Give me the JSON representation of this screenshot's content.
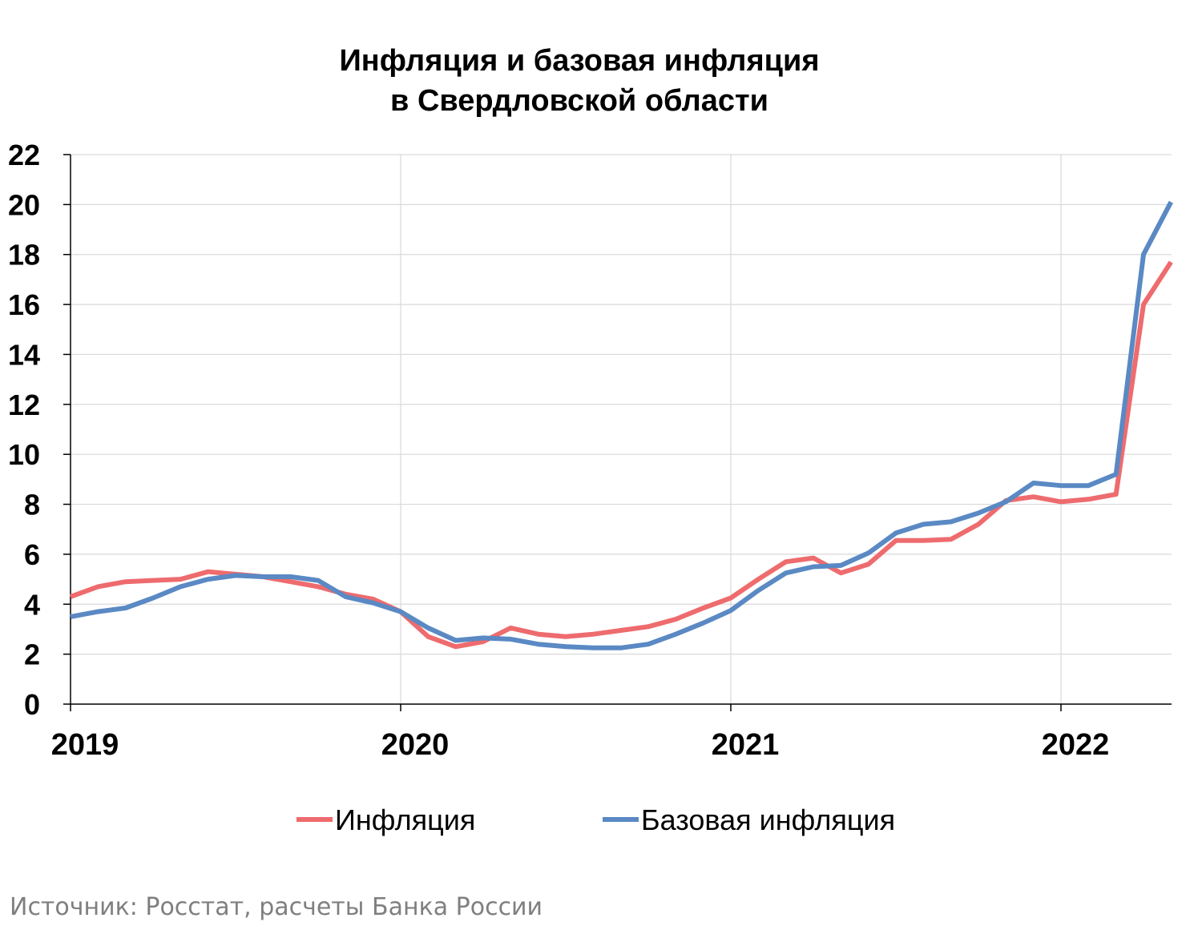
{
  "chart_data": {
    "type": "line",
    "title": [
      "Инфляция и базовая инфляция",
      "в  Свердловской области"
    ],
    "source": "Источник: Росстат, расчеты Банка России",
    "x_tick_labels": [
      "2019",
      "2020",
      "2021",
      "2022"
    ],
    "x_unit": "months since January 2019",
    "ylim": [
      0,
      22
    ],
    "y_ticks": [
      0,
      2,
      4,
      6,
      8,
      10,
      12,
      14,
      16,
      18,
      20,
      22
    ],
    "grid": true,
    "legend_position": "bottom",
    "series": [
      {
        "name": "Инфляция",
        "color": "#EE6B6E",
        "values": [
          4.3,
          4.7,
          4.9,
          4.95,
          5.0,
          5.3,
          5.2,
          5.1,
          4.9,
          4.7,
          4.4,
          4.2,
          3.7,
          2.7,
          2.3,
          2.5,
          3.05,
          2.8,
          2.7,
          2.8,
          2.95,
          3.1,
          3.4,
          3.85,
          4.25,
          5.0,
          5.7,
          5.85,
          5.25,
          5.6,
          6.55,
          6.55,
          6.6,
          7.2,
          8.15,
          8.3,
          8.1,
          8.2,
          8.4,
          16.0,
          17.7
        ]
      },
      {
        "name": "Базовая инфляция",
        "color": "#5A89C4",
        "values": [
          3.5,
          3.7,
          3.85,
          4.25,
          4.7,
          5.0,
          5.15,
          5.1,
          5.1,
          4.95,
          4.3,
          4.05,
          3.7,
          3.05,
          2.55,
          2.65,
          2.6,
          2.4,
          2.3,
          2.25,
          2.25,
          2.4,
          2.8,
          3.25,
          3.75,
          4.55,
          5.25,
          5.5,
          5.55,
          6.05,
          6.85,
          7.2,
          7.3,
          7.65,
          8.1,
          8.85,
          8.75,
          8.75,
          9.2,
          18.0,
          20.1
        ]
      }
    ]
  }
}
